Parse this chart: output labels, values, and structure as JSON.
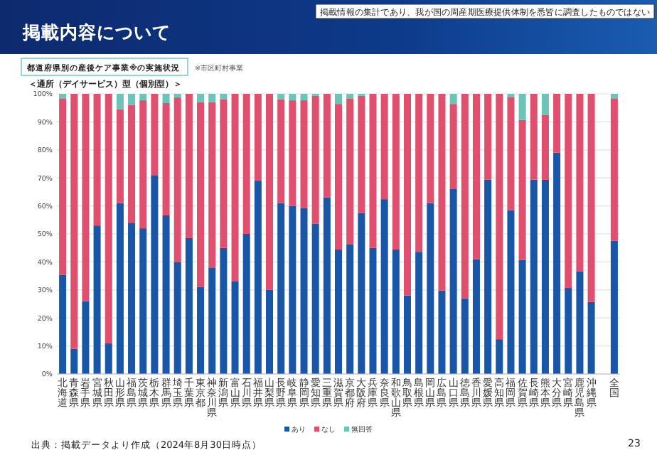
{
  "chart_data": {
    "type": "bar",
    "stacked": true,
    "title": "掲載内容について",
    "subtitle": "都道府県別の産後ケア事業※の実施状況",
    "annotations": [
      "掲載情報の集計であり、我が国の周産期医療提供体制を悉皆に調査したものではない",
      "※市区町村事業",
      "＜通所（デイサービス）型（個別型）＞",
      "出典：掲載データより作成（2024年8月30日時点）",
      "23"
    ],
    "categories": [
      "北海道",
      "青森県",
      "岩手県",
      "宮城県",
      "秋田県",
      "山形県",
      "福島県",
      "茨城県",
      "栃木県",
      "群馬県",
      "埼玉県",
      "千葉県",
      "東京都",
      "神奈川県",
      "新潟県",
      "富山県",
      "石川県",
      "福井県",
      "山梨県",
      "長野県",
      "岐阜県",
      "静岡県",
      "愛知県",
      "三重県",
      "滋賀県",
      "京都府",
      "大阪府",
      "兵庫県",
      "奈良県",
      "和歌山県",
      "鳥取県",
      "島根県",
      "岡山県",
      "広島県",
      "山口県",
      "徳島県",
      "香川県",
      "愛媛県",
      "高知県",
      "福岡県",
      "佐賀県",
      "長崎県",
      "熊本県",
      "大分県",
      "宮崎県",
      "鹿児島県",
      "沖縄県",
      null,
      "全国"
    ],
    "series": [
      {
        "name": "あり",
        "color": "#1a56a8",
        "values": [
          35.4,
          9,
          26,
          53,
          11,
          61,
          54,
          52,
          71,
          56.6,
          40,
          48.5,
          31,
          38,
          45,
          33,
          50,
          69,
          30,
          61,
          60,
          59.3,
          53.7,
          63,
          44.4,
          46.2,
          57.4,
          45,
          62.4,
          44.4,
          28,
          43.6,
          61,
          29.8,
          66,
          27,
          41,
          69.4,
          12.4,
          58.5,
          40.7,
          69.4,
          69.3,
          79,
          30.7,
          36.7,
          25.7,
          null,
          47.6
        ]
      },
      {
        "name": "なし",
        "color": "#e0506e",
        "values": [
          63,
          91,
          74,
          47,
          89,
          33.5,
          42,
          45.7,
          29,
          40.1,
          58.7,
          51.5,
          66,
          59,
          53,
          67,
          50,
          31,
          70,
          37,
          37.7,
          38.4,
          45.6,
          37,
          52,
          52.2,
          41.9,
          55,
          37.6,
          55.6,
          72,
          56.4,
          39,
          70.2,
          30.4,
          73,
          59,
          30.6,
          87.6,
          40.4,
          50,
          30.6,
          23.1,
          21,
          69.3,
          63.3,
          74.3,
          null,
          50.8
        ]
      },
      {
        "name": "無回答",
        "color": "#6cc4b8",
        "values": [
          1.6,
          0,
          0,
          0,
          0,
          5.5,
          4,
          2.3,
          0,
          3.3,
          1.3,
          0,
          3,
          3,
          2,
          0,
          0,
          0,
          0,
          2,
          2.3,
          2.3,
          0.7,
          0,
          3.6,
          1.6,
          0.7,
          0,
          0,
          0,
          0,
          0,
          0,
          0,
          3.6,
          0,
          0,
          0,
          0,
          1.1,
          9.3,
          0,
          7.6,
          0,
          0,
          0,
          0,
          null,
          1.6
        ]
      }
    ],
    "ylim": [
      0,
      100
    ],
    "yticks": [
      {
        "value": 0,
        "label": "0%"
      },
      {
        "value": 10,
        "label": "10%"
      },
      {
        "value": 20,
        "label": "20%"
      },
      {
        "value": 30,
        "label": "30%"
      },
      {
        "value": 40,
        "label": "40%"
      },
      {
        "value": 50,
        "label": "50%"
      },
      {
        "value": 60,
        "label": "60%"
      },
      {
        "value": 70,
        "label": "70%"
      },
      {
        "value": 80,
        "label": "80%"
      },
      {
        "value": 90,
        "label": "90%"
      },
      {
        "value": 100,
        "label": "100%"
      }
    ],
    "grid": "y",
    "legend": "bottom"
  }
}
